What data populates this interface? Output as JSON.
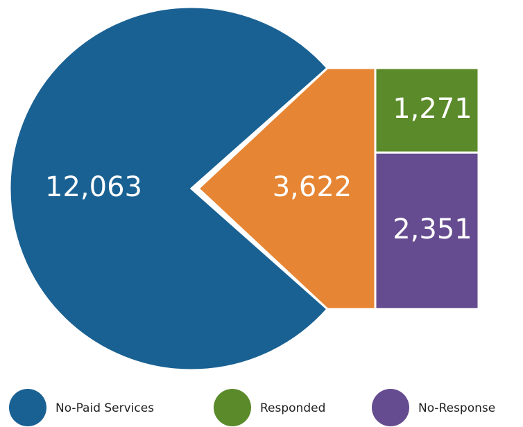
{
  "chart_data": {
    "type": "pie-of-bar",
    "pie": {
      "categories": [
        "No-Paid Services",
        null
      ],
      "values": [
        12063,
        3622
      ],
      "value_labels": [
        "12,063",
        "3,622"
      ],
      "colors": [
        "#1a6193",
        "#e68533"
      ]
    },
    "bar": {
      "categories": [
        "Responded",
        "No-Response"
      ],
      "values": [
        1271,
        2351
      ],
      "value_labels": [
        "1,271",
        "2,351"
      ],
      "colors": [
        "#5b8a2a",
        "#654b8f"
      ]
    }
  }
}
